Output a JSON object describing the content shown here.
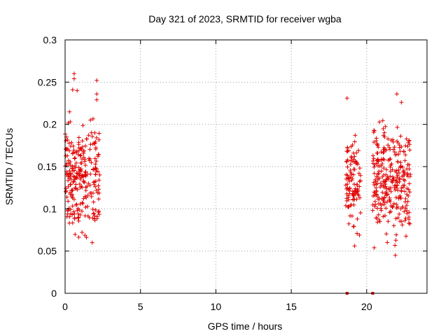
{
  "chart_data": {
    "type": "scatter",
    "title": "Day 321 of 2023, SRMTID for receiver wgba",
    "xlabel": "GPS time / hours",
    "ylabel": "SRMTID / TECUs",
    "xlim": [
      0,
      24
    ],
    "ylim": [
      0,
      0.3
    ],
    "x_ticks": [
      0,
      5,
      10,
      15,
      20
    ],
    "x_tick_labels": [
      "0",
      "5",
      "10",
      "15",
      "20"
    ],
    "y_ticks": [
      0,
      0.05,
      0.1,
      0.15,
      0.2,
      0.25,
      0.3
    ],
    "y_tick_labels": [
      "0",
      "0.05",
      "0.1",
      "0.15",
      "0.2",
      "0.25",
      "0.3"
    ],
    "grid": true,
    "marker": "plus",
    "color": "#e00000",
    "clusters": [
      {
        "x_range": [
          0.0,
          2.3
        ],
        "y_mean": 0.135,
        "y_spread": 0.04,
        "y_min": 0.058,
        "y_max": 0.262,
        "count": 260
      },
      {
        "x_range": [
          18.6,
          19.6
        ],
        "y_mean": 0.132,
        "y_spread": 0.035,
        "y_min": 0.055,
        "y_max": 0.232,
        "count": 110
      },
      {
        "x_range": [
          20.4,
          22.9
        ],
        "y_mean": 0.135,
        "y_spread": 0.04,
        "y_min": 0.044,
        "y_max": 0.237,
        "count": 290
      }
    ],
    "zero_markers": [
      18.7,
      20.4
    ],
    "highlight_points": [
      {
        "x": 0.6,
        "y": 0.26
      },
      {
        "x": 0.6,
        "y": 0.254
      },
      {
        "x": 2.1,
        "y": 0.252
      },
      {
        "x": 0.5,
        "y": 0.241
      },
      {
        "x": 0.8,
        "y": 0.24
      },
      {
        "x": 2.1,
        "y": 0.236
      },
      {
        "x": 2.1,
        "y": 0.229
      },
      {
        "x": 0.1,
        "y": 0.144
      },
      {
        "x": 1.8,
        "y": 0.06
      },
      {
        "x": 18.7,
        "y": 0.231
      },
      {
        "x": 19.2,
        "y": 0.056
      },
      {
        "x": 22.0,
        "y": 0.236
      },
      {
        "x": 22.3,
        "y": 0.226
      },
      {
        "x": 21.9,
        "y": 0.045
      },
      {
        "x": 20.5,
        "y": 0.054
      }
    ]
  }
}
